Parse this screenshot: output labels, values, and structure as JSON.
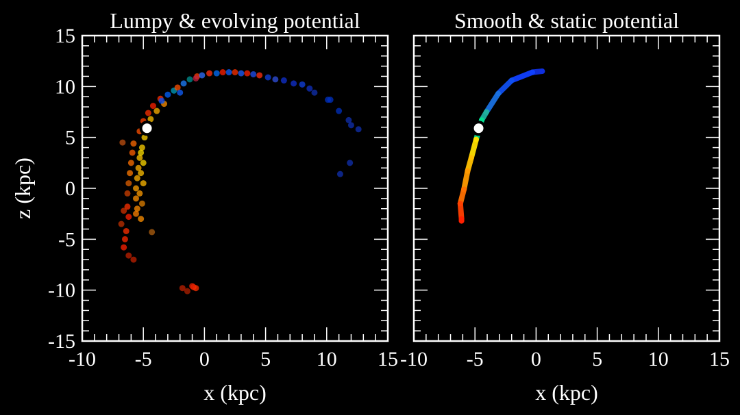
{
  "chart_data": [
    {
      "type": "scatter",
      "title": "Lumpy & evolving potential",
      "xlabel": "x (kpc)",
      "ylabel": "z (kpc)",
      "xlim": [
        -10,
        15
      ],
      "ylim": [
        -15,
        15
      ],
      "xticks": [
        "-10",
        "-5",
        "0",
        "5",
        "10",
        "15"
      ],
      "yticks": [
        "-15",
        "-10",
        "-5",
        "0",
        "5",
        "10",
        "15"
      ],
      "background": "#000000",
      "grid": false,
      "progenitor": {
        "x": -4.7,
        "z": 5.9,
        "color": "#ffffff"
      },
      "points": [
        [
          -4.9,
          5.0,
          "#ffd000"
        ],
        [
          -5.1,
          4.0,
          "#ffd000"
        ],
        [
          -5.3,
          3.0,
          "#ffc400"
        ],
        [
          -5.4,
          2.0,
          "#ffb000"
        ],
        [
          -5.5,
          1.0,
          "#ffb000"
        ],
        [
          -5.6,
          0.0,
          "#ffa000"
        ],
        [
          -5.6,
          -1.0,
          "#ff9000"
        ],
        [
          -5.5,
          -2.0,
          "#ff8c00"
        ],
        [
          -5.6,
          -2.5,
          "#ff8000"
        ],
        [
          -5.2,
          3.5,
          "#ffe000"
        ],
        [
          -5.0,
          2.5,
          "#ffd800"
        ],
        [
          -5.2,
          1.5,
          "#ffc000"
        ],
        [
          -5.0,
          0.5,
          "#ffb800"
        ],
        [
          -5.3,
          -0.5,
          "#ff9c00"
        ],
        [
          -5.1,
          -1.5,
          "#e08000"
        ],
        [
          -5.8,
          4.4,
          "#ff6a00"
        ],
        [
          -5.9,
          3.5,
          "#ff6000"
        ],
        [
          -6.0,
          2.5,
          "#ff7000"
        ],
        [
          -6.1,
          1.5,
          "#ff7a00"
        ],
        [
          -6.2,
          0.5,
          "#e06000"
        ],
        [
          -6.3,
          -0.5,
          "#d04000"
        ],
        [
          -6.3,
          -1.8,
          "#ff3000"
        ],
        [
          -6.6,
          -2.2,
          "#d03000"
        ],
        [
          -6.2,
          -2.8,
          "#ff2000"
        ],
        [
          -6.8,
          -3.5,
          "#c03000"
        ],
        [
          -6.4,
          -4.2,
          "#ff3000"
        ],
        [
          -6.5,
          -5.0,
          "#ff2a00"
        ],
        [
          -6.6,
          -5.8,
          "#ff2000"
        ],
        [
          -6.2,
          -6.6,
          "#c02000"
        ],
        [
          -5.8,
          -7.0,
          "#c02000"
        ],
        [
          -4.3,
          -4.3,
          "#b06010"
        ],
        [
          -6.7,
          4.5,
          "#c05010"
        ],
        [
          -5.2,
          -3.0,
          "#ff9000"
        ],
        [
          -5.3,
          5.6,
          "#ff5000"
        ],
        [
          -5.0,
          6.6,
          "#ff4000"
        ],
        [
          -4.6,
          7.4,
          "#ff3000"
        ],
        [
          -4.2,
          8.1,
          "#ff2000"
        ],
        [
          -3.6,
          8.8,
          "#ff3000"
        ],
        [
          -4.4,
          6.8,
          "#ffc000"
        ],
        [
          -3.9,
          7.6,
          "#ffb000"
        ],
        [
          -3.3,
          8.3,
          "#ff9000"
        ],
        [
          -3.0,
          9.2,
          "#0060ff"
        ],
        [
          -2.5,
          9.6,
          "#00a0c0"
        ],
        [
          -2.2,
          9.9,
          "#ff5000"
        ],
        [
          -1.7,
          10.3,
          "#1e80ff"
        ],
        [
          -1.2,
          10.7,
          "#009090"
        ],
        [
          -0.6,
          11.0,
          "#ff4000"
        ],
        [
          -0.2,
          11.1,
          "#3070ff"
        ],
        [
          0.4,
          11.3,
          "#ff3010"
        ],
        [
          1.0,
          11.3,
          "#0070ff"
        ],
        [
          1.5,
          11.4,
          "#ff2000"
        ],
        [
          2.0,
          11.4,
          "#1060ff"
        ],
        [
          2.5,
          11.4,
          "#ff3000"
        ],
        [
          3.0,
          11.3,
          "#2060ff"
        ],
        [
          3.5,
          11.3,
          "#ff2000"
        ],
        [
          4.0,
          11.2,
          "#2050f0"
        ],
        [
          4.5,
          11.1,
          "#ff3010"
        ],
        [
          5.2,
          10.9,
          "#1040e0"
        ],
        [
          5.8,
          10.7,
          "#3050e0"
        ],
        [
          6.5,
          10.6,
          "#1030d0"
        ],
        [
          7.3,
          10.3,
          "#1030d0"
        ],
        [
          8.0,
          10.2,
          "#1040e0"
        ],
        [
          8.6,
          9.8,
          "#1030c0"
        ],
        [
          9.0,
          9.4,
          "#1030b0"
        ],
        [
          10.1,
          8.7,
          "#0030c0"
        ],
        [
          10.3,
          8.7,
          "#0030c0"
        ],
        [
          11.0,
          7.6,
          "#0030c0"
        ],
        [
          11.8,
          6.7,
          "#1030b0"
        ],
        [
          12.0,
          6.2,
          "#1030b0"
        ],
        [
          12.6,
          5.8,
          "#1030b0"
        ],
        [
          11.9,
          2.5,
          "#1030b0"
        ],
        [
          11.1,
          1.4,
          "#1030b0"
        ],
        [
          -0.7,
          10.8,
          "#c02040"
        ],
        [
          -3.5,
          8.6,
          "#0050ff"
        ],
        [
          -2.0,
          9.4,
          "#1060ff"
        ],
        [
          -4.6,
          6.3,
          "#1050ff"
        ],
        [
          -1.8,
          -9.8,
          "#c02000"
        ],
        [
          -1.4,
          -10.1,
          "#b02000"
        ],
        [
          -0.9,
          -9.7,
          "#ff2000"
        ],
        [
          -0.7,
          -9.8,
          "#ff3000"
        ],
        [
          -1.0,
          -9.6,
          "#e02000"
        ]
      ]
    },
    {
      "type": "scatter",
      "title": "Smooth & static potential",
      "xlabel": "x (kpc)",
      "ylabel": "",
      "xlim": [
        -10,
        15
      ],
      "ylim": [
        -15,
        15
      ],
      "xticks": [
        "-10",
        "-5",
        "0",
        "5",
        "10",
        "15"
      ],
      "yticks": [],
      "background": "#000000",
      "grid": false,
      "progenitor": {
        "x": -4.7,
        "z": 5.9,
        "color": "#ffffff"
      },
      "points": [
        [
          0.5,
          11.5,
          "#1030e0"
        ],
        [
          -0.3,
          11.4,
          "#1040ff"
        ],
        [
          -2.0,
          10.6,
          "#1050f0"
        ],
        [
          -3.1,
          9.3,
          "#1a70e0"
        ],
        [
          -4.06,
          7.5,
          "#20b0a0"
        ],
        [
          -4.45,
          6.7,
          "#00e090"
        ],
        [
          -4.9,
          4.8,
          "#ffe000"
        ],
        [
          -5.3,
          3.0,
          "#ffc000"
        ],
        [
          -5.6,
          1.7,
          "#ff9a00"
        ],
        [
          -5.9,
          -0.1,
          "#ff7000"
        ],
        [
          -6.2,
          -1.5,
          "#ff4000"
        ],
        [
          -6.1,
          -3.0,
          "#ff2000"
        ],
        [
          -6.1,
          -3.2,
          "#ff2000"
        ]
      ]
    }
  ]
}
